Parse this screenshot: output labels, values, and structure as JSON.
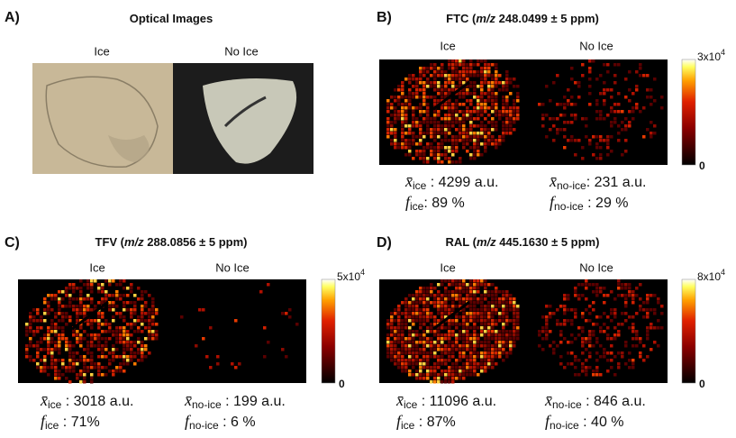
{
  "panels": [
    {
      "label": "A)",
      "title": {
        "pre": "Optical Images"
      },
      "sublabels": [
        "Ice",
        "No Ice"
      ]
    },
    {
      "label": "B)",
      "title": {
        "pre": "FTC (",
        "em": "m/z",
        "post": " 248.0499 ± 5 ppm)"
      },
      "sublabels": [
        "Ice",
        "No Ice"
      ],
      "colorbar": {
        "max": "3x10",
        "exp": "4",
        "min": "0"
      },
      "stats": [
        {
          "sym": "x̄",
          "sub": "ice",
          "text": " : 4299 a.u."
        },
        {
          "sym": "f",
          "sub": "ice",
          "text": ": 89 %"
        },
        {
          "sym": "x̄",
          "sub": "no-ice",
          "text": ": 231 a.u."
        },
        {
          "sym": "f",
          "sub": "no-ice",
          "text": " : 29 %"
        }
      ]
    },
    {
      "label": "C)",
      "title": {
        "pre": "TFV (",
        "em": "m/z",
        "post": " 288.0856 ± 5 ppm)"
      },
      "sublabels": [
        "Ice",
        "No Ice"
      ],
      "colorbar": {
        "max": "5x10",
        "exp": "4",
        "min": "0"
      },
      "stats": [
        {
          "sym": "x̄",
          "sub": "ice",
          "text": " : 3018 a.u."
        },
        {
          "sym": "f",
          "sub": "ice",
          "text": " : 71%"
        },
        {
          "sym": "x̄",
          "sub": "no-ice",
          "text": " : 199 a.u."
        },
        {
          "sym": "f",
          "sub": "no-ice",
          "text": " : 6 %"
        }
      ]
    },
    {
      "label": "D)",
      "title": {
        "pre": "RAL (",
        "em": "m/z",
        "post": " 445.1630  ± 5 ppm)"
      },
      "sublabels": [
        "Ice",
        "No Ice"
      ],
      "colorbar": {
        "max": "8x10",
        "exp": "4",
        "min": "0"
      },
      "stats": [
        {
          "sym": "x̄",
          "sub": "ice",
          "text": " : 11096 a.u."
        },
        {
          "sym": "f",
          "sub": "ice",
          "text": " : 87%"
        },
        {
          "sym": "x̄",
          "sub": "no-ice",
          "text": " : 846 a.u."
        },
        {
          "sym": "f",
          "sub": "no-ice",
          "text": " : 40 %"
        }
      ]
    }
  ]
}
